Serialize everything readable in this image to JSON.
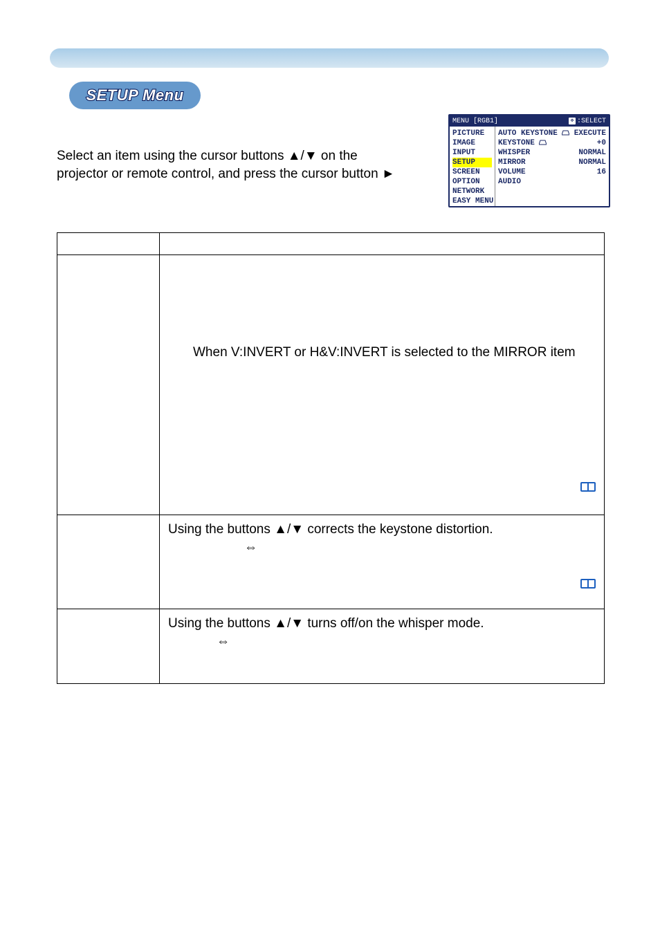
{
  "colors": {
    "gradient_top": "#a9cde8",
    "gradient_bottom": "#d5e6f2",
    "pill_bg": "#6699cc",
    "pill_stroke": "#001050",
    "pill_fill": "#ffffff",
    "menu_border": "#1c2a66",
    "menu_text": "#1c2a66",
    "highlight_bg": "#ffff00",
    "book_fill": "#1c5fbf",
    "book_page": "#ffffff"
  },
  "pill": {
    "label": "SETUP Menu"
  },
  "intro": {
    "line1": "Select an item using the cursor buttons ▲/▼ on the",
    "line2": "projector or remote control, and press the cursor button ►"
  },
  "menu": {
    "header_left": "MENU [RGB1]",
    "header_select": ":SELECT",
    "left_items": [
      {
        "label": "PICTURE",
        "selected": false
      },
      {
        "label": "IMAGE",
        "selected": false
      },
      {
        "label": "INPUT",
        "selected": false
      },
      {
        "label": "SETUP",
        "selected": true
      },
      {
        "label": "SCREEN",
        "selected": false
      },
      {
        "label": "OPTION",
        "selected": false
      },
      {
        "label": "NETWORK",
        "selected": false
      },
      {
        "label": "EASY MENU",
        "selected": false
      }
    ],
    "right_rows": [
      {
        "left": "AUTO KEYSTONE",
        "has_trap": true,
        "right": "EXECUTE"
      },
      {
        "left": "KEYSTONE",
        "has_trap": true,
        "right": "+0"
      },
      {
        "left": "WHISPER",
        "has_trap": false,
        "right": "NORMAL"
      },
      {
        "left": "MIRROR",
        "has_trap": false,
        "right": "NORMAL"
      },
      {
        "left": "VOLUME",
        "has_trap": false,
        "right": "16"
      },
      {
        "left": "AUDIO",
        "has_trap": false,
        "right": ""
      }
    ]
  },
  "table": {
    "header": {
      "item": "",
      "desc": ""
    },
    "row_autokey": {
      "item": "",
      "line_mirror": "When V:INVERT or H&V:INVERT is selected to the MIRROR item"
    },
    "row_keystone": {
      "item": "",
      "line1": "Using the buttons ▲/▼ corrects the keystone distortion.",
      "arrow": "⇔"
    },
    "row_whisper": {
      "item": "",
      "line1": "Using the buttons ▲/▼ turns off/on the whisper mode.",
      "arrow": "⇔"
    }
  }
}
